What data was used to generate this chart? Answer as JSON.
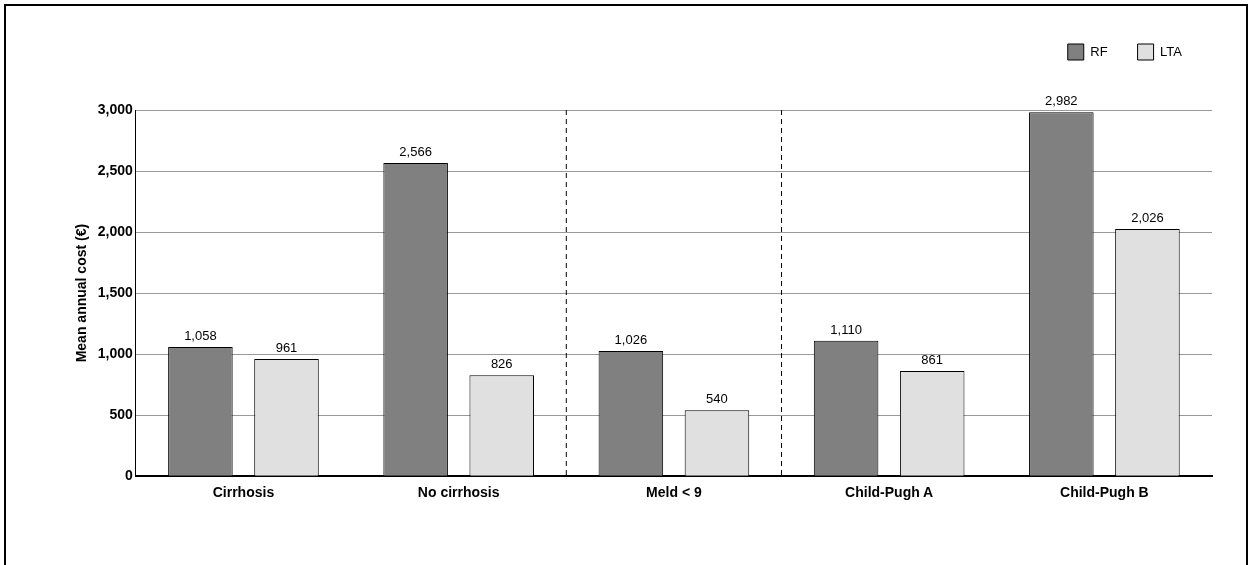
{
  "chart_data": {
    "type": "bar",
    "ylabel": "Mean annual cost (€)",
    "categories": [
      "Cirrhosis",
      "No cirrhosis",
      "Meld < 9",
      "Child-Pugh A",
      "Child-Pugh B"
    ],
    "series": [
      {
        "name": "RF",
        "color": "#808080",
        "values": [
          1058,
          2566,
          1026,
          1110,
          2982
        ],
        "value_labels": [
          "1,058",
          "2,566",
          "1,026",
          "1,110",
          "2,982"
        ]
      },
      {
        "name": "LTA",
        "color": "#e0e0e0",
        "values": [
          961,
          826,
          540,
          861,
          2026
        ],
        "value_labels": [
          "961",
          "826",
          "540",
          "861",
          "2,026"
        ]
      }
    ],
    "ylim": [
      0,
      3000
    ],
    "yticks": [
      {
        "value": 0,
        "label": "0"
      },
      {
        "value": 500,
        "label": "500"
      },
      {
        "value": 1000,
        "label": "1,000"
      },
      {
        "value": 1500,
        "label": "1,500"
      },
      {
        "value": 2000,
        "label": "2,000"
      },
      {
        "value": 2500,
        "label": "2,500"
      },
      {
        "value": 3000,
        "label": "3,000"
      }
    ],
    "grid": "y",
    "legend": "top right"
  }
}
